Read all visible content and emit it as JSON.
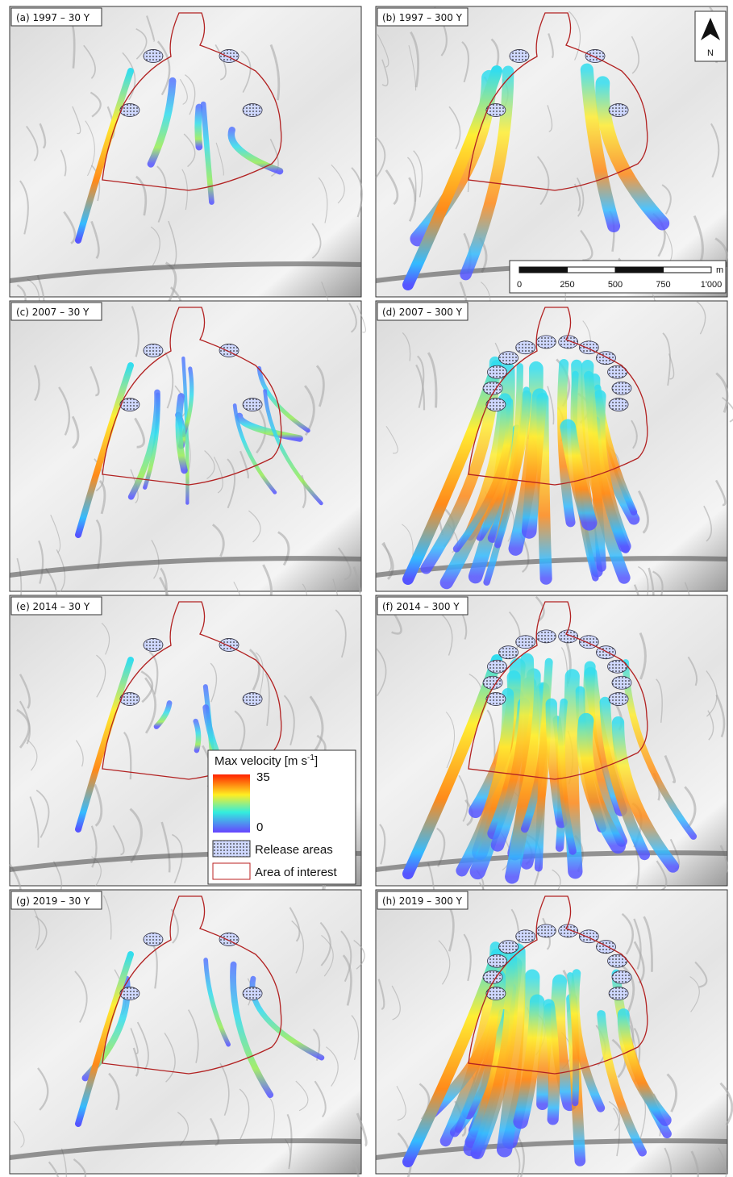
{
  "panels": [
    {
      "label": "(a) 1997 – 30 Y"
    },
    {
      "label": "(b) 1997 – 300 Y"
    },
    {
      "label": "(c) 2007 – 30 Y"
    },
    {
      "label": "(d) 2007 – 300 Y"
    },
    {
      "label": "(e) 2014 – 30 Y"
    },
    {
      "label": "(f) 2014 – 300 Y"
    },
    {
      "label": "(g) 2019 – 30 Y"
    },
    {
      "label": "(h) 2019 – 300 Y"
    }
  ],
  "north_arrow": {
    "label": "N"
  },
  "scale_bar": {
    "unit": "m",
    "ticks": [
      0,
      250,
      500,
      750,
      {
        "value": 1000,
        "label": "1'000"
      }
    ]
  },
  "legend": {
    "title": "Max velocity [m s",
    "title_superscript": "-1",
    "title_end": "]",
    "colorbar_max": 35,
    "colorbar_min": 0,
    "items": [
      {
        "label": "Release areas"
      },
      {
        "label": "Area of interest"
      }
    ]
  }
}
